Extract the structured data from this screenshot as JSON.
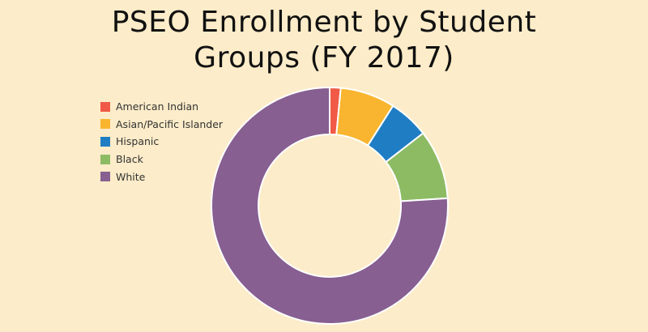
{
  "chart_data": {
    "type": "pie",
    "title_lines": [
      "PSEO Enrollment by Student",
      "Groups (FY 2017)"
    ],
    "categories": [
      "American Indian",
      "Asian/Pacific Islander",
      "Hispanic",
      "Black",
      "White"
    ],
    "values": [
      1.5,
      7.5,
      5.5,
      9.5,
      76.0
    ],
    "colors": [
      "#f05a47",
      "#f9b52f",
      "#1f7dc4",
      "#8dbb64",
      "#875f91"
    ],
    "donut": true,
    "legend_position": "top-left"
  }
}
